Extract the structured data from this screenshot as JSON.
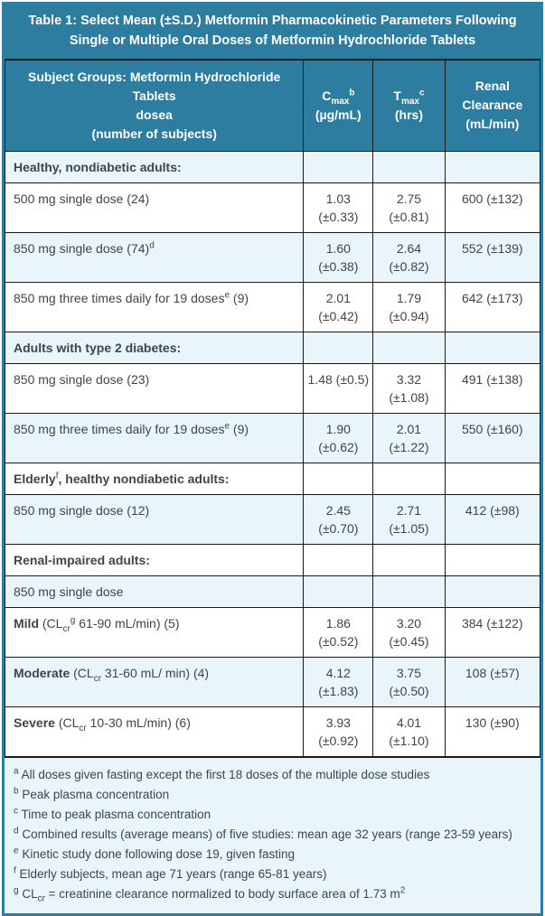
{
  "title": "Table 1: Select Mean (±S.D.) Metformin Pharmacokinetic Parameters Following Single or Multiple Oral Doses of Metformin Hydrochloride Tablets",
  "colors": {
    "teal_header": "#2d7da0",
    "row_light_blue": "#e9f4fb",
    "row_white": "#ffffff",
    "cell_border": "#1a1a1a",
    "body_text": "#3f454b",
    "header_text": "#ffffff"
  },
  "header": {
    "col1_lines": [
      "Subject Groups: Metformin Hydrochloride Tablets",
      "dosea",
      "(number of subjects)"
    ],
    "cmax": {
      "parts": [
        {
          "t": "C"
        },
        {
          "t": "max",
          "k": "sub"
        },
        {
          "t": "b",
          "k": "sup"
        }
      ],
      "unit": "(µg/mL)"
    },
    "tmax": {
      "parts": [
        {
          "t": "T"
        },
        {
          "t": "max",
          "k": "sub"
        },
        {
          "t": "c",
          "k": "sup"
        }
      ],
      "unit": "(hrs)"
    },
    "renal_lines": [
      "Renal",
      "Clearance",
      "(mL/min)"
    ]
  },
  "rows": [
    {
      "shade": "blue",
      "label": [
        {
          "t": "Healthy, nondiabetic adults:",
          "k": "b"
        }
      ],
      "cmax": "",
      "tmax": "",
      "renal": ""
    },
    {
      "shade": "white",
      "label": [
        {
          "t": "500 mg single dose (24)"
        }
      ],
      "cmax": "1.03\n(±0.33)",
      "tmax": "2.75\n(±0.81)",
      "renal": "600 (±132)"
    },
    {
      "shade": "blue",
      "label": [
        {
          "t": "850 mg single dose (74)"
        },
        {
          "t": "d",
          "k": "sup"
        }
      ],
      "cmax": "1.60\n(±0.38)",
      "tmax": "2.64\n(±0.82)",
      "renal": "552 (±139)"
    },
    {
      "shade": "white",
      "label": [
        {
          "t": "850 mg three times daily for 19 doses"
        },
        {
          "t": "e",
          "k": "sup"
        },
        {
          "t": " (9)"
        }
      ],
      "cmax": "2.01\n(±0.42)",
      "tmax": "1.79\n(±0.94)",
      "renal": "642 (±173)"
    },
    {
      "shade": "blue",
      "label": [
        {
          "t": "Adults with type 2 diabetes:",
          "k": "b"
        }
      ],
      "cmax": "",
      "tmax": "",
      "renal": ""
    },
    {
      "shade": "white",
      "label": [
        {
          "t": "850 mg single dose (23)"
        }
      ],
      "cmax": "1.48 (±0.5)",
      "tmax": "3.32\n(±1.08)",
      "renal": "491 (±138)"
    },
    {
      "shade": "blue",
      "label": [
        {
          "t": "850 mg three times daily for 19 doses"
        },
        {
          "t": "e",
          "k": "sup"
        },
        {
          "t": " (9)"
        }
      ],
      "cmax": "1.90\n(±0.62)",
      "tmax": "2.01\n(±1.22)",
      "renal": "550 (±160)"
    },
    {
      "shade": "white",
      "label": [
        {
          "t": "Elderly",
          "k": "b"
        },
        {
          "t": "f",
          "k": "sup"
        },
        {
          "t": ", healthy nondiabetic adults:",
          "k": "b"
        }
      ],
      "cmax": "",
      "tmax": "",
      "renal": ""
    },
    {
      "shade": "blue",
      "label": [
        {
          "t": "850 mg single dose (12)"
        }
      ],
      "cmax": "2.45\n(±0.70)",
      "tmax": "2.71\n(±1.05)",
      "renal": "412 (±98)"
    },
    {
      "shade": "white",
      "label": [
        {
          "t": "Renal-impaired adults:",
          "k": "b"
        }
      ],
      "cmax": "",
      "tmax": "",
      "renal": ""
    },
    {
      "shade": "blue",
      "label": [
        {
          "t": "850 mg single dose"
        }
      ],
      "cmax": "",
      "tmax": "",
      "renal": ""
    },
    {
      "shade": "white",
      "label": [
        {
          "t": "Mild",
          "k": "b"
        },
        {
          "t": " (CL"
        },
        {
          "t": "cr",
          "k": "sub"
        },
        {
          "t": "g",
          "k": "sup"
        },
        {
          "t": " 61-90 mL/min) (5)"
        }
      ],
      "cmax": "1.86\n(±0.52)",
      "tmax": "3.20\n(±0.45)",
      "renal": "384 (±122)"
    },
    {
      "shade": "blue",
      "label": [
        {
          "t": "Moderate",
          "k": "b"
        },
        {
          "t": " (CL"
        },
        {
          "t": "cr",
          "k": "sub"
        },
        {
          "t": " 31-60 mL/ min) (4)"
        }
      ],
      "cmax": "4.12\n(±1.83)",
      "tmax": "3.75\n(±0.50)",
      "renal": "108 (±57)"
    },
    {
      "shade": "white",
      "label": [
        {
          "t": "Severe",
          "k": "b"
        },
        {
          "t": " (CL"
        },
        {
          "t": "cr",
          "k": "sub"
        },
        {
          "t": " 10-30 mL/min) (6)"
        }
      ],
      "cmax": "3.93\n(±0.92)",
      "tmax": "4.01\n(±1.10)",
      "renal": "130 (±90)"
    }
  ],
  "footnotes": [
    [
      {
        "t": "a",
        "k": "sup"
      },
      {
        "t": " All doses given fasting except the first 18 doses of the multiple dose studies"
      }
    ],
    [
      {
        "t": "b",
        "k": "sup"
      },
      {
        "t": " Peak plasma concentration"
      }
    ],
    [
      {
        "t": "c",
        "k": "sup"
      },
      {
        "t": " Time to peak plasma concentration"
      }
    ],
    [
      {
        "t": "d",
        "k": "sup"
      },
      {
        "t": " Combined results (average means) of five studies: mean age 32 years (range 23-59 years)"
      }
    ],
    [
      {
        "t": "e",
        "k": "sup"
      },
      {
        "t": " Kinetic study done following dose 19, given fasting"
      }
    ],
    [
      {
        "t": "f",
        "k": "sup"
      },
      {
        "t": " Elderly subjects, mean age 71 years (range 65-81 years)"
      }
    ],
    [
      {
        "t": "g",
        "k": "sup"
      },
      {
        "t": " CL"
      },
      {
        "t": "cr",
        "k": "sub"
      },
      {
        "t": " = creatinine clearance normalized to body surface area of 1.73 m"
      },
      {
        "t": "2",
        "k": "sup"
      }
    ]
  ]
}
